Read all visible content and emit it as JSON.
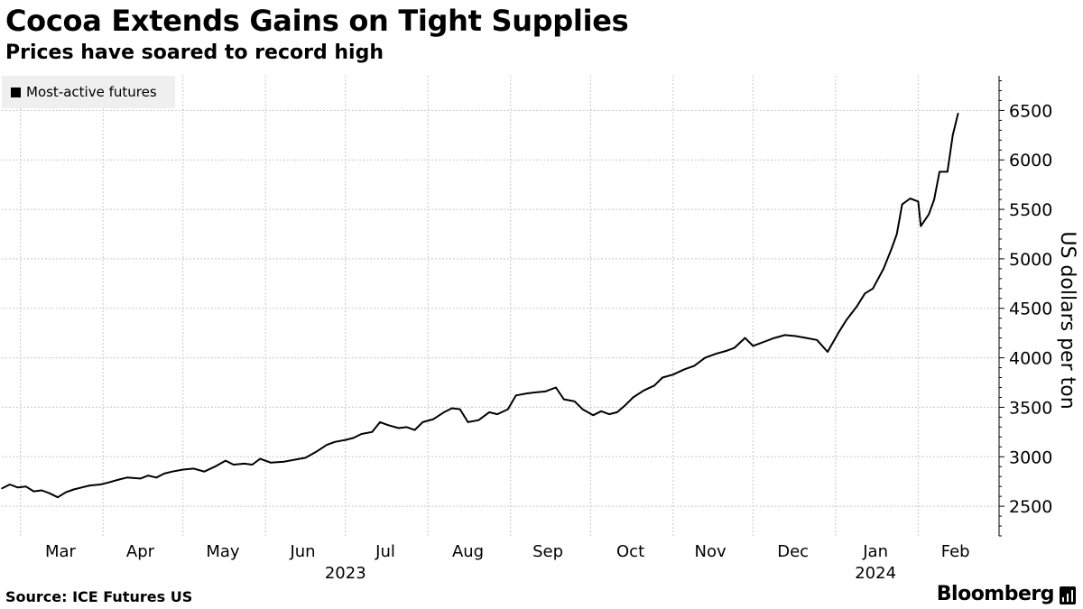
{
  "chart_data": {
    "type": "line",
    "title": "Cocoa Extends Gains on Tight Supplies",
    "subtitle": "Prices have soared to record high",
    "ylabel": "US dollars per ton",
    "xlabel": "",
    "ylim": [
      2200,
      6850
    ],
    "yticks": [
      2500,
      3000,
      3500,
      4000,
      4500,
      5000,
      5500,
      6000,
      6500
    ],
    "grid": true,
    "legend_position": "top-left",
    "x_start": "2023-02-22",
    "x_end": "2024-02-29",
    "month_labels": [
      {
        "label": "Mar",
        "date": "2023-03-16"
      },
      {
        "label": "Apr",
        "date": "2023-04-15"
      },
      {
        "label": "May",
        "date": "2023-05-16"
      },
      {
        "label": "Jun",
        "date": "2023-06-15"
      },
      {
        "label": "Jul",
        "date": "2023-07-16"
      },
      {
        "label": "Aug",
        "date": "2023-08-16"
      },
      {
        "label": "Sep",
        "date": "2023-09-15"
      },
      {
        "label": "Oct",
        "date": "2023-10-16"
      },
      {
        "label": "Nov",
        "date": "2023-11-15"
      },
      {
        "label": "Dec",
        "date": "2023-12-16"
      },
      {
        "label": "Jan",
        "date": "2024-01-16"
      },
      {
        "label": "Feb",
        "date": "2024-02-15"
      }
    ],
    "month_boundaries": [
      "2023-03-01",
      "2023-04-01",
      "2023-05-01",
      "2023-06-01",
      "2023-07-01",
      "2023-08-01",
      "2023-09-01",
      "2023-10-01",
      "2023-11-01",
      "2023-12-01",
      "2024-01-01",
      "2024-02-01"
    ],
    "year_labels": [
      {
        "label": "2023",
        "date": "2023-07-01"
      },
      {
        "label": "2024",
        "date": "2024-01-16"
      }
    ],
    "series": [
      {
        "name": "Most-active futures",
        "color": "#000000",
        "points": [
          [
            "2023-02-22",
            2680
          ],
          [
            "2023-02-25",
            2720
          ],
          [
            "2023-02-28",
            2690
          ],
          [
            "2023-03-03",
            2700
          ],
          [
            "2023-03-06",
            2650
          ],
          [
            "2023-03-09",
            2660
          ],
          [
            "2023-03-12",
            2630
          ],
          [
            "2023-03-15",
            2590
          ],
          [
            "2023-03-18",
            2640
          ],
          [
            "2023-03-21",
            2670
          ],
          [
            "2023-03-24",
            2690
          ],
          [
            "2023-03-27",
            2710
          ],
          [
            "2023-03-31",
            2720
          ],
          [
            "2023-04-03",
            2740
          ],
          [
            "2023-04-07",
            2770
          ],
          [
            "2023-04-10",
            2790
          ],
          [
            "2023-04-15",
            2780
          ],
          [
            "2023-04-18",
            2810
          ],
          [
            "2023-04-21",
            2790
          ],
          [
            "2023-04-24",
            2830
          ],
          [
            "2023-04-27",
            2850
          ],
          [
            "2023-05-01",
            2870
          ],
          [
            "2023-05-05",
            2880
          ],
          [
            "2023-05-09",
            2850
          ],
          [
            "2023-05-13",
            2900
          ],
          [
            "2023-05-17",
            2960
          ],
          [
            "2023-05-20",
            2920
          ],
          [
            "2023-05-24",
            2930
          ],
          [
            "2023-05-27",
            2920
          ],
          [
            "2023-05-30",
            2980
          ],
          [
            "2023-06-03",
            2940
          ],
          [
            "2023-06-08",
            2950
          ],
          [
            "2023-06-12",
            2970
          ],
          [
            "2023-06-16",
            2990
          ],
          [
            "2023-06-20",
            3050
          ],
          [
            "2023-06-24",
            3120
          ],
          [
            "2023-06-27",
            3150
          ],
          [
            "2023-07-01",
            3170
          ],
          [
            "2023-07-04",
            3190
          ],
          [
            "2023-07-07",
            3230
          ],
          [
            "2023-07-11",
            3250
          ],
          [
            "2023-07-14",
            3350
          ],
          [
            "2023-07-17",
            3320
          ],
          [
            "2023-07-21",
            3290
          ],
          [
            "2023-07-24",
            3300
          ],
          [
            "2023-07-27",
            3270
          ],
          [
            "2023-07-30",
            3350
          ],
          [
            "2023-08-03",
            3380
          ],
          [
            "2023-08-07",
            3450
          ],
          [
            "2023-08-10",
            3490
          ],
          [
            "2023-08-13",
            3480
          ],
          [
            "2023-08-16",
            3350
          ],
          [
            "2023-08-20",
            3370
          ],
          [
            "2023-08-24",
            3450
          ],
          [
            "2023-08-27",
            3430
          ],
          [
            "2023-08-31",
            3480
          ],
          [
            "2023-09-03",
            3620
          ],
          [
            "2023-09-07",
            3640
          ],
          [
            "2023-09-10",
            3650
          ],
          [
            "2023-09-14",
            3660
          ],
          [
            "2023-09-18",
            3700
          ],
          [
            "2023-09-21",
            3580
          ],
          [
            "2023-09-25",
            3560
          ],
          [
            "2023-09-28",
            3480
          ],
          [
            "2023-10-02",
            3420
          ],
          [
            "2023-10-05",
            3460
          ],
          [
            "2023-10-08",
            3430
          ],
          [
            "2023-10-11",
            3450
          ],
          [
            "2023-10-14",
            3520
          ],
          [
            "2023-10-17",
            3600
          ],
          [
            "2023-10-21",
            3670
          ],
          [
            "2023-10-25",
            3720
          ],
          [
            "2023-10-28",
            3800
          ],
          [
            "2023-11-01",
            3830
          ],
          [
            "2023-11-05",
            3880
          ],
          [
            "2023-11-09",
            3920
          ],
          [
            "2023-11-13",
            4000
          ],
          [
            "2023-11-17",
            4040
          ],
          [
            "2023-11-21",
            4070
          ],
          [
            "2023-11-24",
            4100
          ],
          [
            "2023-11-28",
            4200
          ],
          [
            "2023-12-01",
            4120
          ],
          [
            "2023-12-05",
            4160
          ],
          [
            "2023-12-09",
            4200
          ],
          [
            "2023-12-13",
            4230
          ],
          [
            "2023-12-17",
            4220
          ],
          [
            "2023-12-21",
            4200
          ],
          [
            "2023-12-25",
            4180
          ],
          [
            "2023-12-29",
            4060
          ],
          [
            "2024-01-02",
            4250
          ],
          [
            "2024-01-05",
            4380
          ],
          [
            "2024-01-09",
            4520
          ],
          [
            "2024-01-12",
            4650
          ],
          [
            "2024-01-15",
            4700
          ],
          [
            "2024-01-19",
            4900
          ],
          [
            "2024-01-22",
            5100
          ],
          [
            "2024-01-24",
            5250
          ],
          [
            "2024-01-26",
            5550
          ],
          [
            "2024-01-29",
            5610
          ],
          [
            "2024-02-01",
            5580
          ],
          [
            "2024-02-02",
            5330
          ],
          [
            "2024-02-05",
            5450
          ],
          [
            "2024-02-07",
            5600
          ],
          [
            "2024-02-09",
            5880
          ],
          [
            "2024-02-12",
            5880
          ],
          [
            "2024-02-14",
            6250
          ],
          [
            "2024-02-16",
            6470
          ]
        ]
      }
    ]
  },
  "source": "Source: ICE Futures US",
  "brand": "Bloomberg"
}
